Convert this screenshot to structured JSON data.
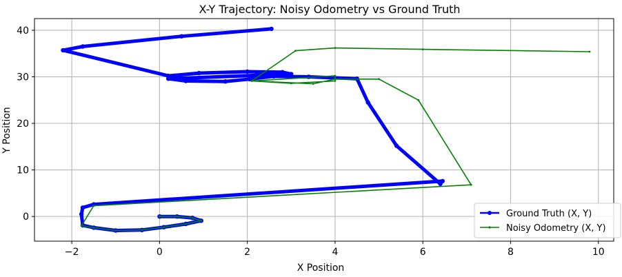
{
  "chart_data": {
    "type": "line",
    "title": "X-Y Trajectory: Noisy Odometry vs Ground Truth",
    "xlabel": "X Position",
    "ylabel": "Y Position",
    "xlim": [
      -2.85,
      10.35
    ],
    "ylim": [
      -5.3,
      42.5
    ],
    "xticks": [
      -2,
      0,
      2,
      4,
      6,
      8,
      10
    ],
    "yticks": [
      0,
      10,
      20,
      30,
      40
    ],
    "grid": true,
    "legend_position": "lower right",
    "series": [
      {
        "name": "Ground Truth (X, Y)",
        "color": "#0000ff",
        "style": "thick line with dot markers",
        "points": [
          [
            0,
            0
          ],
          [
            0.4,
            0
          ],
          [
            0.75,
            -0.3
          ],
          [
            0.95,
            -0.9
          ],
          [
            0.6,
            -1.6
          ],
          [
            0.1,
            -2.3
          ],
          [
            -0.4,
            -2.9
          ],
          [
            -1.0,
            -3.0
          ],
          [
            -1.5,
            -2.4
          ],
          [
            -1.75,
            -1.9
          ],
          [
            -1.78,
            0.5
          ],
          [
            -1.75,
            1.9
          ],
          [
            -1.5,
            2.6
          ],
          [
            6.45,
            7.6
          ],
          [
            6.4,
            7.0
          ],
          [
            5.4,
            15.2
          ],
          [
            4.75,
            24.5
          ],
          [
            4.5,
            29.6
          ],
          [
            3.4,
            30.0
          ],
          [
            2.6,
            30.1
          ],
          [
            2.05,
            29.5
          ],
          [
            1.5,
            29.0
          ],
          [
            0.6,
            29.1
          ],
          [
            0.2,
            29.6
          ],
          [
            3.0,
            30.6
          ],
          [
            2.8,
            31.0
          ],
          [
            2.0,
            31.1
          ],
          [
            0.9,
            30.8
          ],
          [
            0.2,
            30.2
          ],
          [
            -2.2,
            35.7
          ],
          [
            -1.75,
            36.5
          ],
          [
            0.5,
            38.7
          ],
          [
            2.55,
            40.3
          ]
        ]
      },
      {
        "name": "Noisy Odometry (X, Y)",
        "color": "#008000",
        "style": "thin line with small markers",
        "points": [
          [
            0,
            0
          ],
          [
            0.4,
            0
          ],
          [
            0.75,
            -0.3
          ],
          [
            0.95,
            -0.9
          ],
          [
            0.6,
            -1.6
          ],
          [
            0.1,
            -2.3
          ],
          [
            -0.4,
            -2.9
          ],
          [
            -1.0,
            -3.0
          ],
          [
            -1.5,
            -2.4
          ],
          [
            -1.78,
            -2.0
          ],
          [
            -1.5,
            2.3
          ],
          [
            7.1,
            6.8
          ],
          [
            5.9,
            25.0
          ],
          [
            5.0,
            29.5
          ],
          [
            4.0,
            29.5
          ],
          [
            3.5,
            28.5
          ],
          [
            2.1,
            29.1
          ],
          [
            4.0,
            30.2
          ],
          [
            4.0,
            29.1
          ],
          [
            3.0,
            28.6
          ],
          [
            2.1,
            29.1
          ],
          [
            3.1,
            35.6
          ],
          [
            4.0,
            36.2
          ],
          [
            6.0,
            35.9
          ],
          [
            9.8,
            35.4
          ]
        ]
      }
    ]
  }
}
